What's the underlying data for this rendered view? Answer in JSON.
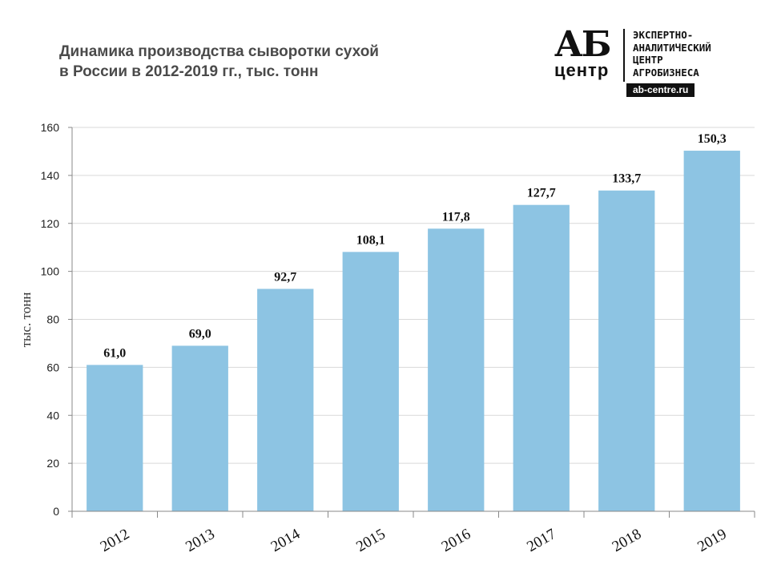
{
  "title": {
    "line1": "Динамика производства сыворотки сухой",
    "line2": "в России в 2012-2019 гг., тыс. тонн"
  },
  "logo": {
    "mark": "АБ",
    "mark_sub": "центр",
    "line1": "ЭКСПЕРТНО-",
    "line2": "АНАЛИТИЧЕСКИЙ",
    "line3": "ЦЕНТР",
    "line4": "АГРОБИЗНЕСА",
    "url": "ab-centre.ru"
  },
  "chart_data": {
    "type": "bar",
    "categories": [
      "2012",
      "2013",
      "2014",
      "2015",
      "2016",
      "2017",
      "2018",
      "2019"
    ],
    "values": [
      61.0,
      69.0,
      92.7,
      108.1,
      117.8,
      127.7,
      133.7,
      150.3
    ],
    "data_labels": [
      "61,0",
      "69,0",
      "92,7",
      "108,1",
      "117,8",
      "127,7",
      "133,7",
      "150,3"
    ],
    "ylabel": "тыс. тонн",
    "xlabel": "",
    "ylim": [
      0,
      160
    ],
    "yticks": [
      0,
      20,
      40,
      60,
      80,
      100,
      120,
      140,
      160
    ],
    "grid": true,
    "legend": "none",
    "bar_color": "#8dc4e3",
    "grid_color": "#d9d9d9"
  }
}
